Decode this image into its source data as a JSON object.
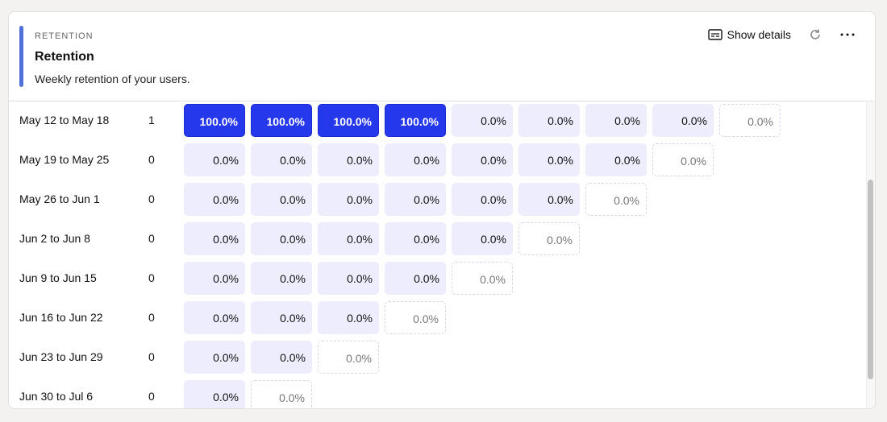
{
  "header": {
    "eyebrow": "RETENTION",
    "title": "Retention",
    "subtitle": "Weekly retention of your users.",
    "show_details_label": "Show details"
  },
  "colors": {
    "accent": "#5072d8",
    "full": "#2638ec",
    "empty": "#eeedfd"
  },
  "rows": [
    {
      "label": "May 12 to May 18",
      "count": "1",
      "cells": [
        "100.0%",
        "100.0%",
        "100.0%",
        "100.0%",
        "0.0%",
        "0.0%",
        "0.0%",
        "0.0%"
      ],
      "pending": "0.0%"
    },
    {
      "label": "May 19 to May 25",
      "count": "0",
      "cells": [
        "0.0%",
        "0.0%",
        "0.0%",
        "0.0%",
        "0.0%",
        "0.0%",
        "0.0%"
      ],
      "pending": "0.0%"
    },
    {
      "label": "May 26 to Jun 1",
      "count": "0",
      "cells": [
        "0.0%",
        "0.0%",
        "0.0%",
        "0.0%",
        "0.0%",
        "0.0%"
      ],
      "pending": "0.0%"
    },
    {
      "label": "Jun 2 to Jun 8",
      "count": "0",
      "cells": [
        "0.0%",
        "0.0%",
        "0.0%",
        "0.0%",
        "0.0%"
      ],
      "pending": "0.0%"
    },
    {
      "label": "Jun 9 to Jun 15",
      "count": "0",
      "cells": [
        "0.0%",
        "0.0%",
        "0.0%",
        "0.0%"
      ],
      "pending": "0.0%"
    },
    {
      "label": "Jun 16 to Jun 22",
      "count": "0",
      "cells": [
        "0.0%",
        "0.0%",
        "0.0%"
      ],
      "pending": "0.0%"
    },
    {
      "label": "Jun 23 to Jun 29",
      "count": "0",
      "cells": [
        "0.0%",
        "0.0%"
      ],
      "pending": "0.0%"
    },
    {
      "label": "Jun 30 to Jul 6",
      "count": "0",
      "cells": [
        "0.0%"
      ],
      "pending": "0.0%"
    }
  ]
}
